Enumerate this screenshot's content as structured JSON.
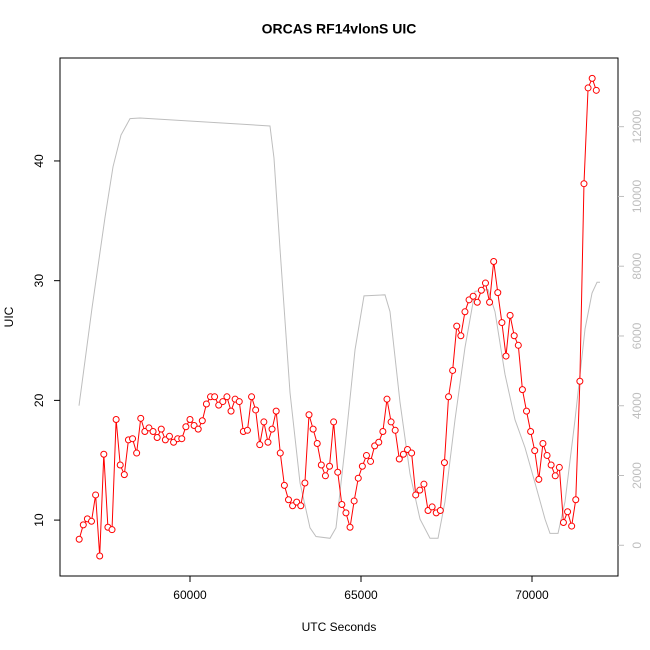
{
  "chart_data": {
    "type": "line",
    "title": "ORCAS RF14vlonS UIC",
    "x_label": "UTC Seconds",
    "y_label": "UIC",
    "xlim": [
      56199,
      72515
    ],
    "xticks": [
      60000,
      65000,
      70000
    ],
    "ylim": [
      5.33,
      48.6
    ],
    "yticks": [
      10,
      20,
      30,
      40
    ],
    "y2lim": [
      -881,
      13969
    ],
    "y2ticks": [
      0,
      2000,
      4000,
      6000,
      8000,
      10000,
      12000
    ],
    "series": [
      {
        "color": "#bebebe",
        "axis": "y2",
        "x": [
          56755,
          57135,
          57515,
          57749,
          57983,
          58246,
          58538,
          62339,
          62456,
          62632,
          62924,
          63217,
          63509,
          63684,
          64094,
          64269,
          64532,
          64825,
          65088,
          65702,
          65848,
          66141,
          66433,
          66726,
          67018,
          67252,
          67456,
          67749,
          68041,
          68334,
          68714,
          68918,
          69211,
          69503,
          69796,
          70088,
          70381,
          70527,
          70761,
          70966,
          71258,
          71551,
          71756,
          71902,
          71989
        ],
        "values": [
          4000,
          6800,
          9400,
          10850,
          11760,
          12230,
          12250,
          12020,
          11100,
          8500,
          4380,
          1790,
          500,
          250,
          200,
          500,
          2800,
          5600,
          7150,
          7180,
          6700,
          4100,
          2050,
          750,
          200,
          200,
          1250,
          3600,
          5670,
          7280,
          7330,
          6700,
          4900,
          3600,
          2800,
          1790,
          750,
          340,
          340,
          1250,
          3600,
          6200,
          7230,
          7540,
          7540
        ]
      },
      {
        "color": "#ff0000",
        "x": [
          56760,
          56880,
          57000,
          57120,
          57240,
          57360,
          57480,
          57600,
          57720,
          57840,
          57960,
          58080,
          58200,
          58320,
          58440,
          58560,
          58680,
          58800,
          58920,
          59040,
          59160,
          59280,
          59400,
          59520,
          59640,
          59760,
          59880,
          60000,
          60120,
          60240,
          60360,
          60480,
          60600,
          60720,
          60840,
          60960,
          61080,
          61200,
          61320,
          61440,
          61560,
          61680,
          61800,
          61920,
          62040,
          62160,
          62280,
          62400,
          62520,
          62640,
          62760,
          62880,
          63000,
          63120,
          63240,
          63360,
          63480,
          63600,
          63720,
          63840,
          63960,
          64080,
          64200,
          64320,
          64440,
          64560,
          64680,
          64800,
          64920,
          65040,
          65160,
          65280,
          65400,
          65520,
          65640,
          65760,
          65880,
          66000,
          66120,
          66240,
          66360,
          66480,
          66600,
          66720,
          66840,
          66960,
          67080,
          67200,
          67320,
          67440,
          67560,
          67680,
          67800,
          67920,
          68040,
          68160,
          68280,
          68400,
          68520,
          68640,
          68760,
          68880,
          69000,
          69120,
          69240,
          69360,
          69480,
          69600,
          69720,
          69840,
          69960,
          70080,
          70200,
          70320,
          70440,
          70560,
          70680,
          70800,
          70920,
          71040,
          71160,
          71280,
          71400,
          71520,
          71640,
          71760,
          71880
        ],
        "values": [
          8.4,
          9.6,
          10.1,
          9.9,
          12.1,
          7.0,
          15.5,
          9.4,
          9.2,
          18.4,
          14.6,
          13.8,
          16.7,
          16.8,
          15.6,
          18.5,
          17.4,
          17.7,
          17.4,
          16.9,
          17.6,
          16.7,
          17.0,
          16.5,
          16.8,
          16.8,
          17.8,
          18.4,
          17.9,
          17.6,
          18.3,
          19.7,
          20.3,
          20.3,
          19.6,
          19.9,
          20.3,
          19.1,
          20.1,
          19.9,
          17.4,
          17.5,
          20.3,
          19.2,
          16.3,
          18.2,
          16.5,
          17.6,
          19.1,
          15.6,
          12.9,
          11.7,
          11.2,
          11.5,
          11.2,
          13.1,
          18.8,
          17.6,
          16.4,
          14.6,
          13.7,
          14.5,
          18.2,
          14.0,
          11.3,
          10.6,
          9.4,
          11.6,
          13.5,
          14.5,
          15.4,
          14.9,
          16.2,
          16.5,
          17.4,
          20.1,
          18.2,
          17.5,
          15.1,
          15.5,
          15.9,
          15.6,
          12.1,
          12.5,
          13.0,
          10.8,
          11.1,
          10.6,
          10.8,
          14.8,
          20.3,
          22.5,
          26.2,
          25.4,
          27.4,
          28.4,
          28.7,
          28.2,
          29.2,
          29.8,
          28.2,
          31.6,
          29.0,
          26.5,
          23.7,
          27.1,
          25.4,
          24.6,
          20.9,
          19.1,
          17.4,
          15.8,
          13.4,
          16.4,
          15.4,
          14.6,
          13.7,
          14.4,
          9.8,
          10.7,
          9.5,
          11.7,
          21.6,
          38.1,
          46.1,
          46.9,
          45.9
        ]
      }
    ]
  }
}
